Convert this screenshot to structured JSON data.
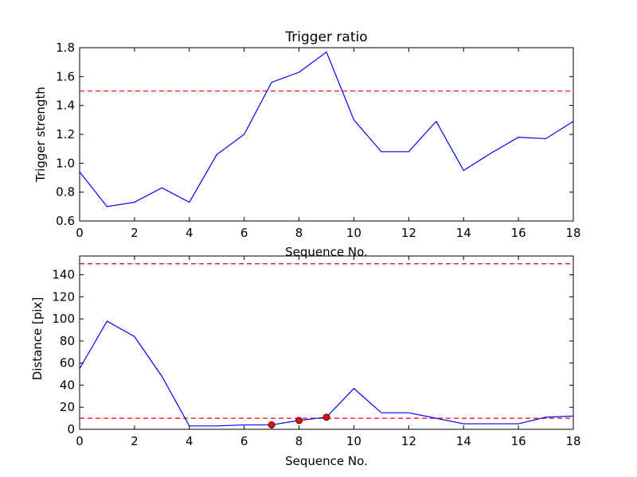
{
  "chart_data": [
    {
      "type": "line",
      "title": "Trigger ratio",
      "xlabel": "Sequence No.",
      "ylabel": "Trigger strength",
      "xlim": [
        0,
        18
      ],
      "ylim": [
        0.6,
        1.8
      ],
      "xticks": [
        0,
        2,
        4,
        6,
        8,
        10,
        12,
        14,
        16,
        18
      ],
      "yticks": [
        0.6,
        0.8,
        1.0,
        1.2,
        1.4,
        1.6,
        1.8
      ],
      "ytick_decimals": 1,
      "grid": false,
      "series": [
        {
          "color": "#0000ff",
          "x": [
            0,
            1,
            2,
            3,
            4,
            5,
            6,
            7,
            8,
            9,
            10,
            11,
            12,
            13,
            14,
            15,
            16,
            17,
            18
          ],
          "y": [
            0.94,
            0.7,
            0.73,
            0.83,
            0.73,
            1.06,
            1.2,
            1.56,
            1.63,
            1.77,
            1.3,
            1.08,
            1.08,
            1.29,
            0.95,
            1.07,
            1.18,
            1.17,
            1.29
          ]
        }
      ],
      "thresholds": [
        {
          "y": 1.5,
          "color": "#ff0000",
          "style": "dashed"
        }
      ],
      "markers": []
    },
    {
      "type": "line",
      "title": "",
      "xlabel": "Sequence No.",
      "ylabel": "Distance [pix]",
      "xlim": [
        0,
        18
      ],
      "ylim": [
        0,
        157
      ],
      "xticks": [
        0,
        2,
        4,
        6,
        8,
        10,
        12,
        14,
        16,
        18
      ],
      "yticks": [
        0,
        20,
        40,
        60,
        80,
        100,
        120,
        140
      ],
      "ytick_decimals": 0,
      "grid": false,
      "series": [
        {
          "color": "#0000ff",
          "x": [
            0,
            1,
            2,
            3,
            4,
            5,
            6,
            7,
            8,
            9,
            10,
            11,
            12,
            13,
            14,
            15,
            16,
            17,
            18
          ],
          "y": [
            55,
            98,
            84,
            48,
            3,
            3,
            4,
            4,
            8,
            11,
            37,
            15,
            15,
            10,
            5,
            5,
            5,
            11,
            12
          ]
        }
      ],
      "thresholds": [
        {
          "y": 150,
          "color": "#ff0000",
          "style": "dashed"
        },
        {
          "y": 10,
          "color": "#ff0000",
          "style": "dashed"
        }
      ],
      "markers": [
        {
          "x": 7,
          "y": 4,
          "color": "#ff0000"
        },
        {
          "x": 8,
          "y": 8,
          "color": "#ff0000"
        },
        {
          "x": 9,
          "y": 11,
          "color": "#ff0000"
        }
      ]
    }
  ]
}
